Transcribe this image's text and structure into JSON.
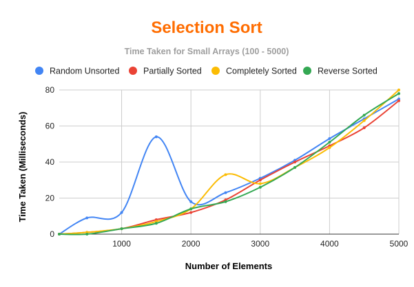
{
  "chart_data": {
    "type": "line",
    "title": "Selection Sort",
    "subtitle": "Time Taken for Small Arrays (100 - 5000)",
    "xlabel": "Number of Elements",
    "ylabel": "Time Taken (Milliseconds)",
    "xlim": [
      100,
      5000
    ],
    "ylim": [
      0,
      80
    ],
    "xticks": [
      1000,
      2000,
      3000,
      4000,
      5000
    ],
    "yticks": [
      0,
      20,
      40,
      60,
      80
    ],
    "grid": true,
    "smooth": true,
    "legend_position": "top",
    "x": [
      100,
      500,
      1000,
      1500,
      2000,
      2500,
      3000,
      3500,
      4000,
      4500,
      5000
    ],
    "series": [
      {
        "name": "Random Unsorted",
        "color": "#4285f4",
        "values": [
          0,
          9,
          12,
          54,
          18,
          23,
          31,
          41,
          53,
          64,
          75
        ]
      },
      {
        "name": "Partially Sorted",
        "color": "#ea4335",
        "values": [
          0,
          1,
          3,
          8,
          12,
          19,
          30,
          40,
          49,
          59,
          74
        ]
      },
      {
        "name": "Completely Sorted",
        "color": "#fbbc04",
        "values": [
          0,
          1,
          3,
          7,
          14,
          33,
          28,
          37,
          48,
          63,
          80
        ]
      },
      {
        "name": "Reverse Sorted",
        "color": "#34a853",
        "values": [
          0,
          0,
          3,
          6,
          14,
          18,
          26,
          37,
          51,
          66,
          78
        ]
      }
    ]
  },
  "colors": {
    "title": "#ff6d01",
    "subtitle": "#9e9e9e",
    "grid": "#cccccc",
    "axis": "#333333"
  }
}
